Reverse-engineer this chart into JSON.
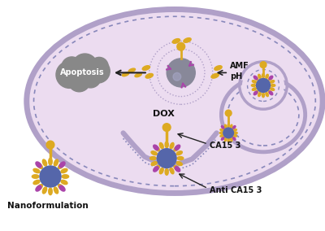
{
  "bg_color": "#ffffff",
  "cell_outer_color": "#c8b8d8",
  "cell_inner_color": "#ecdcf0",
  "cell_membrane_color": "#b0a0c8",
  "cell_membrane_dot_color": "#8888bb",
  "nucleus_color": "#888899",
  "apoptosis_color": "#888888",
  "nanoparticle_core_color": "#5566aa",
  "nanoparticle_spike_color": "#ddaa22",
  "nanoparticle_purple_color": "#aa44aa",
  "linker_color": "#ddaa22",
  "dox_color": "#ddaa22",
  "arrow_color": "#222222",
  "text_color": "#111111",
  "label_nanoformulation": "Nanoformulation",
  "label_anti_ca15": "Anti CA15 3",
  "label_ca15": "CA15 3",
  "label_dox": "DOX",
  "label_amf": "AMF",
  "label_ph": "pH",
  "label_apoptosis": "Apoptosis",
  "figsize": [
    4.0,
    2.84
  ],
  "dpi": 100
}
